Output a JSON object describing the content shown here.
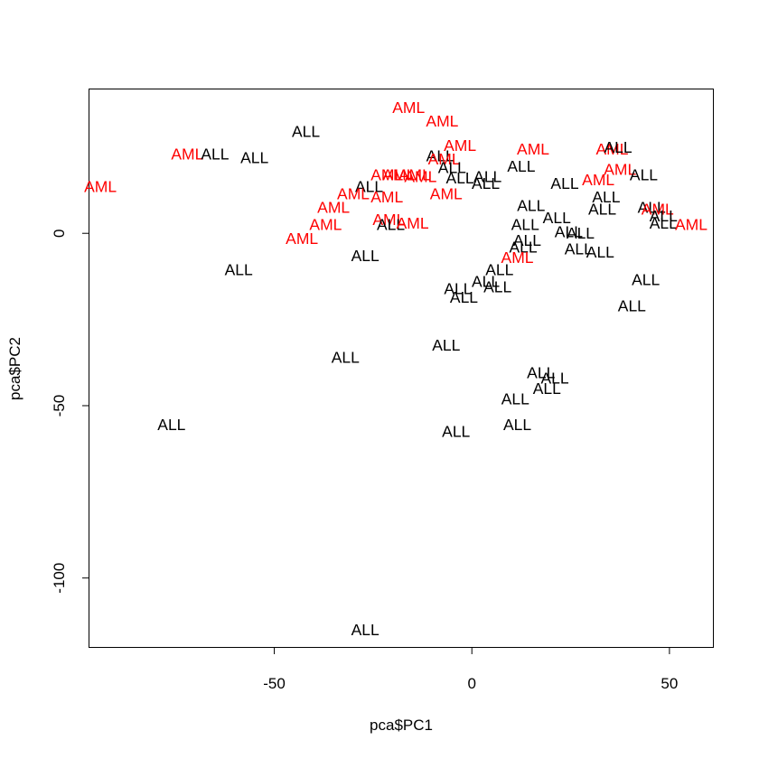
{
  "chart_data": {
    "type": "scatter",
    "marker": "text-labels",
    "title": "",
    "xlabel": "pca$PC1",
    "ylabel": "pca$PC2",
    "xlim": [
      -97,
      61
    ],
    "ylim": [
      -120,
      42
    ],
    "xticks": [
      -50,
      0,
      50
    ],
    "yticks": [
      -100,
      -50,
      0
    ],
    "grid": false,
    "legend": "none",
    "colors": {
      "ALL": "#000000",
      "AML": "#ff0000"
    },
    "points": [
      {
        "label": "AML",
        "x": -94,
        "y": 13.5
      },
      {
        "label": "AML",
        "x": -72,
        "y": 23
      },
      {
        "label": "ALL",
        "x": -65,
        "y": 23
      },
      {
        "label": "ALL",
        "x": -55,
        "y": 22
      },
      {
        "label": "ALL",
        "x": -42,
        "y": 29.5
      },
      {
        "label": "AML",
        "x": -16,
        "y": 36.5
      },
      {
        "label": "AML",
        "x": -7.5,
        "y": 32.5
      },
      {
        "label": "ALL",
        "x": -8,
        "y": 22.5
      },
      {
        "label": "AML",
        "x": -3,
        "y": 25.5
      },
      {
        "label": "AML",
        "x": -7,
        "y": 21.5
      },
      {
        "label": "ALL",
        "x": -5,
        "y": 19
      },
      {
        "label": "AML",
        "x": -21.5,
        "y": 17
      },
      {
        "label": "AML",
        "x": -18.5,
        "y": 17
      },
      {
        "label": "AML",
        "x": -14.5,
        "y": 17
      },
      {
        "label": "AML",
        "x": -13,
        "y": 16.5
      },
      {
        "label": "ALL",
        "x": -26,
        "y": 13.5
      },
      {
        "label": "AML",
        "x": -30,
        "y": 11.5
      },
      {
        "label": "AML",
        "x": -21.5,
        "y": 10.5
      },
      {
        "label": "AML",
        "x": -6.5,
        "y": 11.5
      },
      {
        "label": "ALL",
        "x": -3,
        "y": 16
      },
      {
        "label": "ALL",
        "x": 4,
        "y": 16.5
      },
      {
        "label": "ALL",
        "x": 3.5,
        "y": 14.5
      },
      {
        "label": "ALL",
        "x": 12.5,
        "y": 19.5
      },
      {
        "label": "AML",
        "x": 15.5,
        "y": 24.5
      },
      {
        "label": "AML",
        "x": -35,
        "y": 7.5
      },
      {
        "label": "AML",
        "x": -37,
        "y": 2.5
      },
      {
        "label": "AML",
        "x": -43,
        "y": -1.5
      },
      {
        "label": "AML",
        "x": -21,
        "y": 4
      },
      {
        "label": "ALL",
        "x": -20.5,
        "y": 2.5
      },
      {
        "label": "AML",
        "x": -15,
        "y": 3
      },
      {
        "label": "ALL",
        "x": -27,
        "y": -6.5
      },
      {
        "label": "ALL",
        "x": -59,
        "y": -10.5
      },
      {
        "label": "ALL",
        "x": 15,
        "y": 8
      },
      {
        "label": "ALL",
        "x": 13.5,
        "y": 2.5
      },
      {
        "label": "ALL",
        "x": 21.5,
        "y": 4.5
      },
      {
        "label": "ALL",
        "x": 14,
        "y": -2
      },
      {
        "label": "ALL",
        "x": 13,
        "y": -4
      },
      {
        "label": "AML",
        "x": 11.5,
        "y": -7
      },
      {
        "label": "ALL",
        "x": 7,
        "y": -10.5
      },
      {
        "label": "ALL",
        "x": 3.5,
        "y": -14
      },
      {
        "label": "ALL",
        "x": -3.5,
        "y": -16
      },
      {
        "label": "ALL",
        "x": 6.5,
        "y": -15.5
      },
      {
        "label": "ALL",
        "x": -2,
        "y": -18.5
      },
      {
        "label": "ALL",
        "x": 23.5,
        "y": 14.5
      },
      {
        "label": "ALL",
        "x": 24.5,
        "y": 0.5
      },
      {
        "label": "ALL",
        "x": 27.5,
        "y": 0
      },
      {
        "label": "ALL",
        "x": 27,
        "y": -4.5
      },
      {
        "label": "ALL",
        "x": 32.5,
        "y": -5.5
      },
      {
        "label": "AML",
        "x": 32,
        "y": 15.5
      },
      {
        "label": "ALL",
        "x": 34,
        "y": 10.5
      },
      {
        "label": "ALL",
        "x": 33,
        "y": 7
      },
      {
        "label": "AML",
        "x": 35.5,
        "y": 24.5
      },
      {
        "label": "ALL",
        "x": 37,
        "y": 25
      },
      {
        "label": "AML",
        "x": 37.5,
        "y": 18.5
      },
      {
        "label": "ALL",
        "x": 43.5,
        "y": 17
      },
      {
        "label": "ALL",
        "x": 45.5,
        "y": 7.5
      },
      {
        "label": "AML",
        "x": 47,
        "y": 7
      },
      {
        "label": "ALL",
        "x": 48.5,
        "y": 5
      },
      {
        "label": "ALL",
        "x": 48.5,
        "y": 3
      },
      {
        "label": "AML",
        "x": 55.5,
        "y": 2.5
      },
      {
        "label": "ALL",
        "x": 44,
        "y": -13.5
      },
      {
        "label": "ALL",
        "x": 40.5,
        "y": -21
      },
      {
        "label": "ALL",
        "x": -6.5,
        "y": -32.5
      },
      {
        "label": "ALL",
        "x": -32,
        "y": -36
      },
      {
        "label": "ALL",
        "x": 17.5,
        "y": -40.5
      },
      {
        "label": "ALL",
        "x": 21,
        "y": -42
      },
      {
        "label": "ALL",
        "x": 19,
        "y": -45
      },
      {
        "label": "ALL",
        "x": 11,
        "y": -48
      },
      {
        "label": "ALL",
        "x": 11.5,
        "y": -55.5
      },
      {
        "label": "ALL",
        "x": -76,
        "y": -55.5
      },
      {
        "label": "ALL",
        "x": -4,
        "y": -57.5
      },
      {
        "label": "ALL",
        "x": -27,
        "y": -115
      }
    ]
  }
}
